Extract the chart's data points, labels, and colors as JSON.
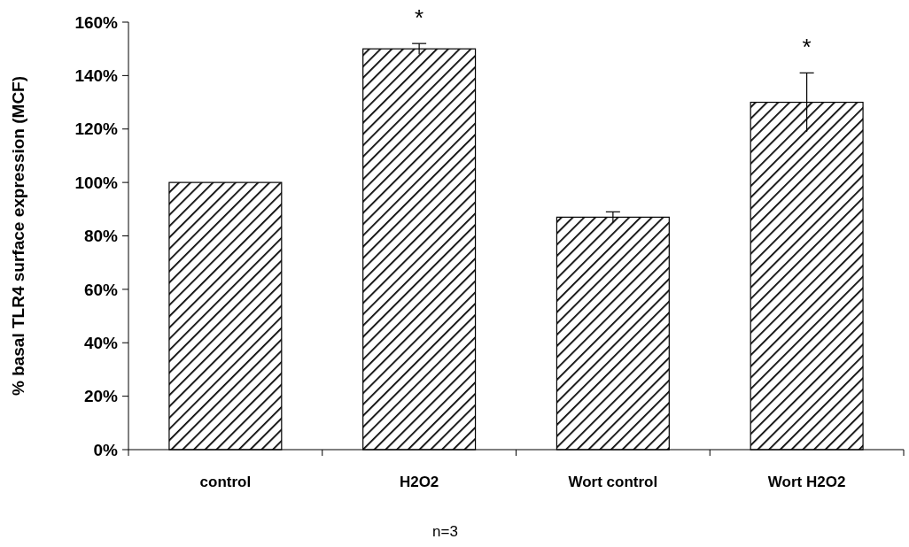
{
  "chart_data": {
    "type": "bar",
    "ylabel": "% basal TLR4 surface expression (MCF)",
    "xlabel": "n=3",
    "categories": [
      "control",
      "H2O2",
      "Wort control",
      "Wort H2O2"
    ],
    "values": [
      100,
      150,
      87,
      130
    ],
    "errors": [
      null,
      2,
      2,
      11
    ],
    "color": "#000000",
    "ylim": [
      0,
      160
    ],
    "yticks": [
      {
        "value": 0,
        "label": "0%"
      },
      {
        "value": 20,
        "label": "20%"
      },
      {
        "value": 40,
        "label": "40%"
      },
      {
        "value": 60,
        "label": "60%"
      },
      {
        "value": 80,
        "label": "80%"
      },
      {
        "value": 100,
        "label": "100%"
      },
      {
        "value": 120,
        "label": "120%"
      },
      {
        "value": 140,
        "label": "140%"
      },
      {
        "value": 160,
        "label": "160%"
      }
    ],
    "annotations": [
      {
        "text": "*",
        "x": "H2O2",
        "y": 150
      },
      {
        "text": "*",
        "x": "Wort H2O2",
        "y": 130
      }
    ],
    "grid": false
  }
}
